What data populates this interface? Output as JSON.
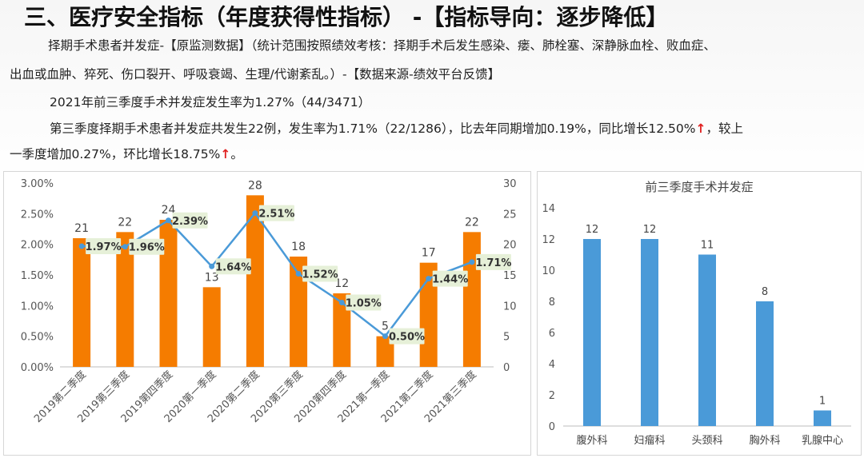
{
  "title": "三、医疗安全指标（年度获得性指标）  -【指标导向：逐步降低】",
  "paragraphs": {
    "p1_line1": "择期手术患者并发症-【原监测数据】（统计范围按照绩效考核：择期手术后发生感染、瘘、肺栓塞、深静脉血栓、败血症、",
    "p1_line2": "出血或血肿、猝死、伤口裂开、呼吸衰竭、生理/代谢紊乱。）-【数据来源-绩效平台反馈】",
    "p2": "2021年前三季度手术并发症发生率为1.27%（44/3471）",
    "p3_line1": "第三季度择期手术患者并发症共发生22例，发生率为1.71%（22/1286），比去年同期增加0.19%，同比增长12.50%",
    "p3_line1_tail": "，较上",
    "p3_line2": "一季度增加0.27%，环比增长18.75%",
    "p3_line2_tail": "。",
    "arrow": "↑"
  },
  "colors": {
    "bar_orange": "#f57c00",
    "line_blue": "#4a9ad8",
    "bar_blue": "#4a9ad8",
    "label_bg": "#e6f0d8",
    "arrow_red": "#e02020"
  },
  "chart_data": [
    {
      "type": "bar",
      "categories": [
        "2019第二季度",
        "2019第三季度",
        "2019第四季度",
        "2020第一季度",
        "2020第二季度",
        "2020第三季度",
        "2020第四季度",
        "2021第一季度",
        "2021第二季度",
        "2021第三季度"
      ],
      "series": [
        {
          "type": "bar",
          "axis": "right",
          "values": [
            21,
            22,
            24,
            13,
            28,
            18,
            12,
            5,
            17,
            22
          ],
          "labels": [
            "21",
            "22",
            "24",
            "13",
            "28",
            "18",
            "12",
            "5",
            "17",
            "22"
          ]
        },
        {
          "type": "line",
          "axis": "left",
          "values": [
            1.97,
            1.96,
            2.39,
            1.64,
            2.51,
            1.52,
            1.05,
            0.5,
            1.44,
            1.71
          ],
          "labels": [
            "1.97%",
            "1.96%",
            "2.39%",
            "1.64%",
            "2.51%",
            "1.52%",
            "1.05%",
            "0.50%",
            "1.44%",
            "1.71%"
          ]
        }
      ],
      "left_ticks": [
        "0.00%",
        "0.50%",
        "1.00%",
        "1.50%",
        "2.00%",
        "2.50%",
        "3.00%"
      ],
      "right_ticks": [
        "0",
        "5",
        "10",
        "15",
        "20",
        "25",
        "30"
      ],
      "ylim_left": [
        0,
        3
      ],
      "ylim_right": [
        0,
        30
      ]
    },
    {
      "type": "bar",
      "title": "前三季度手术并发症",
      "categories": [
        "腹外科",
        "妇瘤科",
        "头颈科",
        "胸外科",
        "乳腺中心"
      ],
      "values": [
        12,
        12,
        11,
        8,
        1
      ],
      "labels": [
        "12",
        "12",
        "11",
        "8",
        "1"
      ],
      "ticks": [
        "0",
        "2",
        "4",
        "6",
        "8",
        "10",
        "12",
        "14"
      ],
      "ylim": [
        0,
        14
      ]
    }
  ]
}
